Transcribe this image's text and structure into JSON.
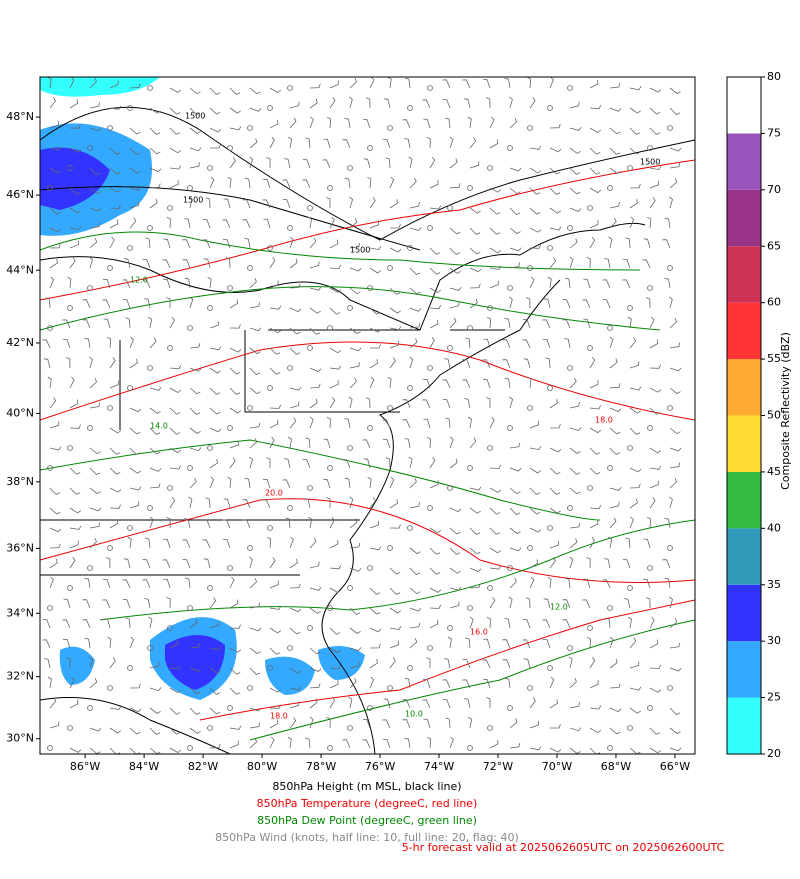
{
  "map": {
    "xlim": [
      -87.53,
      -65.32
    ],
    "ylim": [
      29.5,
      49.0
    ],
    "xticks": [
      {
        "value": -86,
        "label": "86°W"
      },
      {
        "value": -84,
        "label": "84°W"
      },
      {
        "value": -82,
        "label": "82°W"
      },
      {
        "value": -80,
        "label": "80°W"
      },
      {
        "value": -78,
        "label": "78°W"
      },
      {
        "value": -76,
        "label": "76°W"
      },
      {
        "value": -74,
        "label": "74°W"
      },
      {
        "value": -72,
        "label": "72°W"
      },
      {
        "value": -70,
        "label": "70°W"
      },
      {
        "value": -68,
        "label": "68°W"
      },
      {
        "value": -66,
        "label": "66°W"
      }
    ],
    "yticks": [
      {
        "value": 30,
        "label": "30°N"
      },
      {
        "value": 32,
        "label": "32°N"
      },
      {
        "value": 34,
        "label": "34°N"
      },
      {
        "value": 36,
        "label": "36°N"
      },
      {
        "value": 38,
        "label": "38°N"
      },
      {
        "value": 40,
        "label": "40°N"
      },
      {
        "value": 42,
        "label": "42°N"
      },
      {
        "value": 44,
        "label": "44°N"
      },
      {
        "value": 46,
        "label": "46°N"
      },
      {
        "value": 48,
        "label": "48°N"
      }
    ],
    "contour_labels": [
      "1500",
      "1500",
      "1500",
      "1500",
      "16.0",
      "18.0",
      "20.0",
      "18.0",
      "12.0",
      "14.0",
      "10.0",
      "12.0"
    ]
  },
  "colorbar": {
    "label": "Composite Reflectivity (dBZ)",
    "lim": [
      20,
      80
    ],
    "ticks": [
      20,
      25,
      30,
      35,
      40,
      45,
      50,
      55,
      60,
      65,
      70,
      75,
      80
    ],
    "colors": [
      "#33ffff",
      "#33aaff",
      "#3333ff",
      "#3399bb",
      "#33bb44",
      "#ffdd33",
      "#ffaa33",
      "#ff3333",
      "#cc3355",
      "#993388",
      "#9955bb",
      "#ffffff"
    ]
  },
  "captions": {
    "height": "850hPa Height (m MSL, black line)",
    "temperature": "850hPa Temperature (degreeC, red line)",
    "dewpoint": "850hPa Dew Point (degreeC, green line)",
    "wind": "850hPa Wind (knots, half line: 10, full line: 20, flag: 40)",
    "forecast": "5-hr forecast valid at 2025062605UTC on 2025062600UTC"
  }
}
